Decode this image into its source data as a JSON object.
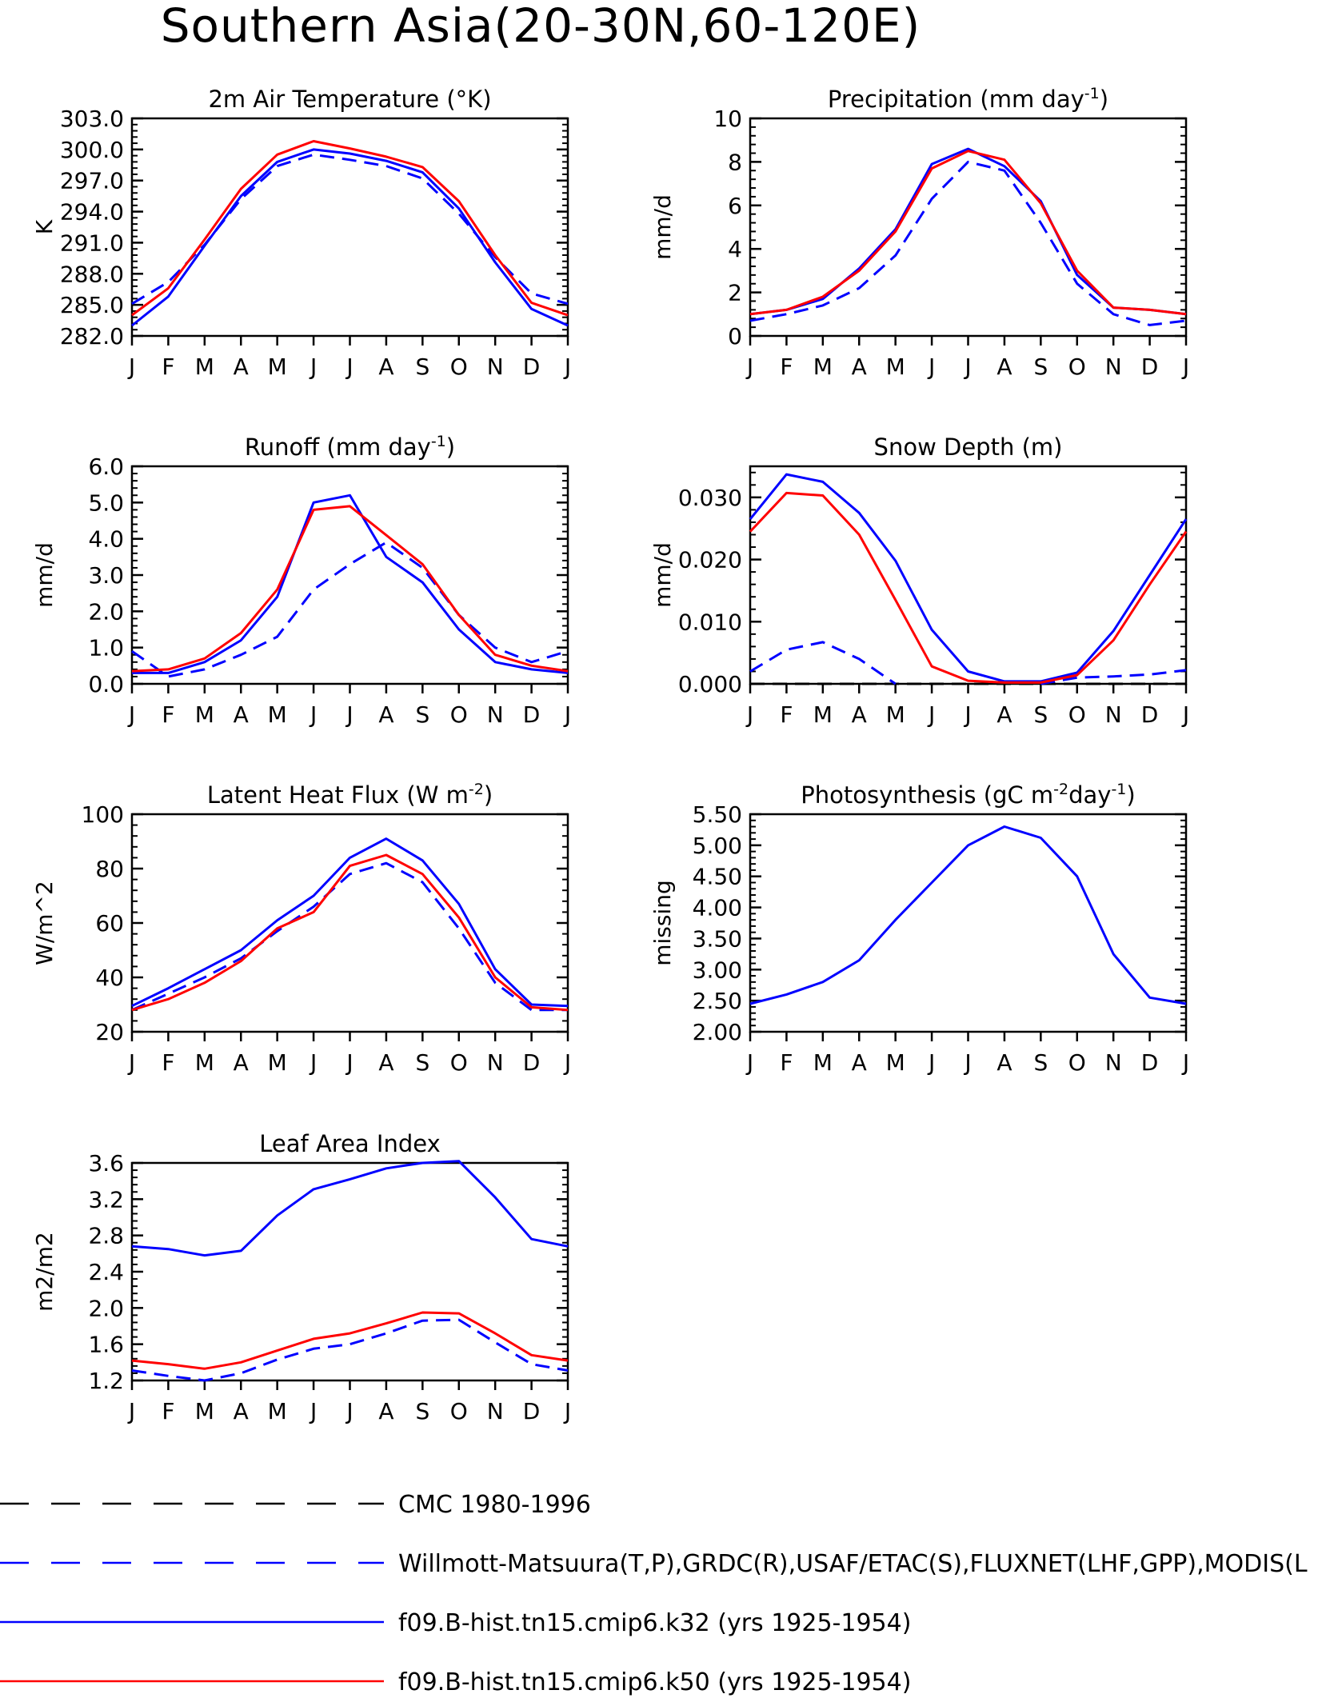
{
  "title": "Southern Asia(20-30N,60-120E)",
  "colors": {
    "obs": "#0000ff",
    "k32": "#0000ff",
    "k50": "#ff0000",
    "cmc": "#000000",
    "axis": "#000000"
  },
  "legend": [
    {
      "key": "cmc",
      "label": "CMC 1980-1996",
      "style": "dashed",
      "color": "#000000"
    },
    {
      "key": "obs",
      "label": "Willmott-Matsuura(T,P),GRDC(R),USAF/ETAC(S),FLUXNET(LHF,GPP),MODIS(L",
      "style": "dashed",
      "color": "#0000ff"
    },
    {
      "key": "k32",
      "label": "f09.B-hist.tn15.cmip6.k32 (yrs 1925-1954)",
      "style": "solid",
      "color": "#0000ff"
    },
    {
      "key": "k50",
      "label": "f09.B-hist.tn15.cmip6.k50 (yrs 1925-1954)",
      "style": "solid",
      "color": "#ff0000"
    }
  ],
  "chart_data": [
    {
      "type": "line",
      "title": "2m Air Temperature (°K)",
      "ylabel": "K",
      "categories": [
        "J",
        "F",
        "M",
        "A",
        "M",
        "J",
        "J",
        "A",
        "S",
        "O",
        "N",
        "D",
        "J"
      ],
      "ylim": [
        282,
        303
      ],
      "yticks": [
        "282.0",
        "285.0",
        "288.0",
        "291.0",
        "294.0",
        "297.0",
        "300.0",
        "303.0"
      ],
      "series": [
        {
          "key": "obs",
          "style": "dashed",
          "values": [
            285.1,
            287.2,
            290.8,
            295.2,
            298.4,
            299.5,
            299.0,
            298.4,
            297.2,
            293.8,
            289.6,
            286.1,
            285.1
          ]
        },
        {
          "key": "k32",
          "style": "solid",
          "values": [
            283.0,
            285.8,
            290.7,
            295.5,
            298.8,
            300.0,
            299.6,
            298.9,
            297.8,
            294.3,
            289.1,
            284.6,
            283.0
          ]
        },
        {
          "key": "k50",
          "style": "solid",
          "values": [
            284.0,
            286.6,
            291.3,
            296.2,
            299.5,
            300.8,
            300.1,
            299.3,
            298.3,
            295.0,
            289.8,
            285.2,
            284.0
          ]
        }
      ]
    },
    {
      "type": "line",
      "title": "Precipitation (mm day",
      "title_sup": "-1",
      "title_end": ")",
      "ylabel": "mm/d",
      "categories": [
        "J",
        "F",
        "M",
        "A",
        "M",
        "J",
        "J",
        "A",
        "S",
        "O",
        "N",
        "D",
        "J"
      ],
      "ylim": [
        0,
        10
      ],
      "yticks": [
        "0",
        "2",
        "4",
        "6",
        "8",
        "10"
      ],
      "series": [
        {
          "key": "obs",
          "style": "dashed",
          "values": [
            0.7,
            1.0,
            1.4,
            2.2,
            3.7,
            6.3,
            8.0,
            7.6,
            5.2,
            2.4,
            1.0,
            0.5,
            0.7
          ]
        },
        {
          "key": "k32",
          "style": "solid",
          "values": [
            1.0,
            1.2,
            1.7,
            3.1,
            4.9,
            7.9,
            8.6,
            7.8,
            6.2,
            2.8,
            1.3,
            1.2,
            1.0
          ]
        },
        {
          "key": "k50",
          "style": "solid",
          "values": [
            1.0,
            1.2,
            1.8,
            3.0,
            4.8,
            7.7,
            8.5,
            8.1,
            6.1,
            3.0,
            1.3,
            1.2,
            1.0
          ]
        }
      ]
    },
    {
      "type": "line",
      "title": "Runoff (mm day",
      "title_sup": "-1",
      "title_end": ")",
      "ylabel": "mm/d",
      "categories": [
        "J",
        "F",
        "M",
        "A",
        "M",
        "J",
        "J",
        "A",
        "S",
        "O",
        "N",
        "D",
        "J"
      ],
      "ylim": [
        0,
        6
      ],
      "yticks": [
        "0.0",
        "1.0",
        "2.0",
        "3.0",
        "4.0",
        "5.0",
        "6.0"
      ],
      "series": [
        {
          "key": "obs",
          "style": "dashed",
          "values": [
            0.9,
            0.2,
            0.4,
            0.8,
            1.3,
            2.6,
            3.3,
            3.9,
            3.2,
            1.9,
            1.0,
            0.6,
            0.9
          ]
        },
        {
          "key": "k32",
          "style": "solid",
          "values": [
            0.3,
            0.3,
            0.6,
            1.2,
            2.4,
            5.0,
            5.2,
            3.5,
            2.8,
            1.5,
            0.6,
            0.4,
            0.3
          ]
        },
        {
          "key": "k50",
          "style": "solid",
          "values": [
            0.35,
            0.4,
            0.7,
            1.4,
            2.6,
            4.8,
            4.9,
            4.1,
            3.3,
            1.9,
            0.8,
            0.5,
            0.35
          ]
        }
      ]
    },
    {
      "type": "line",
      "title": "Snow Depth (m)",
      "ylabel": "mm/d",
      "categories": [
        "J",
        "F",
        "M",
        "A",
        "M",
        "J",
        "J",
        "A",
        "S",
        "O",
        "N",
        "D",
        "J"
      ],
      "ylim": [
        0,
        0.035
      ],
      "yticks": [
        "0.000",
        "0.010",
        "0.020",
        "0.030"
      ],
      "ytick_values": [
        0,
        0.01,
        0.02,
        0.03
      ],
      "series": [
        {
          "key": "cmc",
          "style": "dashed",
          "values": [
            0,
            0,
            0,
            0,
            0,
            0,
            0,
            0,
            0,
            0,
            0,
            0,
            0
          ]
        },
        {
          "key": "obs",
          "style": "dashed",
          "values": [
            0.002,
            0.0055,
            0.0067,
            0.004,
            0.0,
            null,
            null,
            null,
            0.0,
            0.001,
            0.0012,
            0.0015,
            0.0022
          ]
        },
        {
          "key": "k32",
          "style": "solid",
          "values": [
            0.0265,
            0.0337,
            0.0325,
            0.0275,
            0.0198,
            0.0087,
            0.002,
            0.0004,
            0.0004,
            0.0018,
            0.0085,
            0.0175,
            0.0265
          ]
        },
        {
          "key": "k50",
          "style": "solid",
          "values": [
            0.0245,
            0.0307,
            0.0303,
            0.024,
            0.0135,
            0.0028,
            0.0005,
            0.0002,
            0.0002,
            0.0014,
            0.007,
            0.016,
            0.0245
          ]
        }
      ]
    },
    {
      "type": "line",
      "title": "Latent Heat Flux (W m",
      "title_sup": "-2",
      "title_end": ")",
      "ylabel": "W/m^2",
      "categories": [
        "J",
        "F",
        "M",
        "A",
        "M",
        "J",
        "J",
        "A",
        "S",
        "O",
        "N",
        "D",
        "J"
      ],
      "ylim": [
        20,
        100
      ],
      "yticks": [
        "20",
        "40",
        "60",
        "80",
        "100"
      ],
      "series": [
        {
          "key": "obs",
          "style": "dashed",
          "values": [
            28,
            34,
            40,
            47,
            57,
            66,
            78,
            82,
            75,
            58,
            38,
            28,
            28
          ]
        },
        {
          "key": "k32",
          "style": "solid",
          "values": [
            29.5,
            36,
            43,
            50,
            61,
            70,
            84,
            91,
            83,
            67,
            43,
            30,
            29.5
          ]
        },
        {
          "key": "k50",
          "style": "solid",
          "values": [
            28,
            32,
            38,
            46,
            58,
            64,
            81,
            85,
            78,
            62,
            40,
            29,
            28
          ]
        }
      ]
    },
    {
      "type": "line",
      "title": "Photosynthesis (gC m",
      "title_sup": "-2",
      "title_mid": "day",
      "title_sup2": "-1",
      "title_end": ")",
      "ylabel": "missing",
      "categories": [
        "J",
        "F",
        "M",
        "A",
        "M",
        "J",
        "J",
        "A",
        "S",
        "O",
        "N",
        "D",
        "J"
      ],
      "ylim": [
        2.0,
        5.5
      ],
      "yticks": [
        "2.00",
        "2.50",
        "3.00",
        "3.50",
        "4.00",
        "4.50",
        "5.00",
        "5.50"
      ],
      "series": [
        {
          "key": "k32",
          "style": "solid",
          "values": [
            2.45,
            2.6,
            2.8,
            3.15,
            3.8,
            4.4,
            5.0,
            5.3,
            5.12,
            4.5,
            3.25,
            2.55,
            2.45
          ]
        }
      ]
    },
    {
      "type": "line",
      "title": "Leaf Area Index",
      "ylabel": "m2/m2",
      "categories": [
        "J",
        "F",
        "M",
        "A",
        "M",
        "J",
        "J",
        "A",
        "S",
        "O",
        "N",
        "D",
        "J"
      ],
      "ylim": [
        1.2,
        3.6
      ],
      "yticks": [
        "1.2",
        "1.6",
        "2.0",
        "2.4",
        "2.8",
        "3.2",
        "3.6"
      ],
      "series": [
        {
          "key": "obs",
          "style": "dashed",
          "values": [
            1.31,
            1.25,
            1.2,
            1.28,
            1.43,
            1.55,
            1.6,
            1.72,
            1.86,
            1.87,
            1.62,
            1.38,
            1.31
          ]
        },
        {
          "key": "k32",
          "style": "solid",
          "values": [
            2.68,
            2.65,
            2.58,
            2.63,
            3.02,
            3.31,
            3.42,
            3.54,
            3.6,
            3.62,
            3.22,
            2.76,
            2.68
          ]
        },
        {
          "key": "k50",
          "style": "solid",
          "values": [
            1.42,
            1.38,
            1.33,
            1.4,
            1.53,
            1.66,
            1.72,
            1.83,
            1.95,
            1.94,
            1.72,
            1.48,
            1.42
          ]
        }
      ]
    }
  ]
}
